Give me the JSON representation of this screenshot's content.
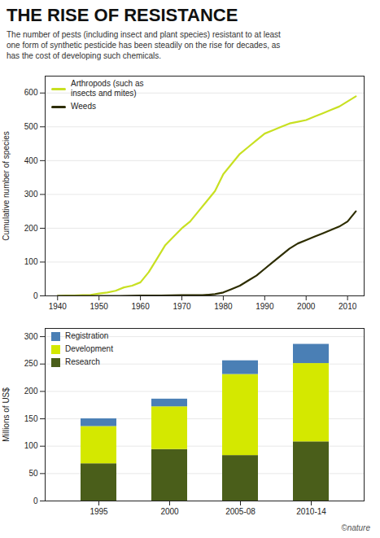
{
  "chart_data": [
    {
      "type": "line",
      "title": "THE RISE OF RESISTANCE",
      "subtitle": "The number of pests (including insect and plant species) resistant to at least\none form of synthetic pesticide has been steadily on the rise for decades, as\nhas the cost of developing such chemicals.",
      "ylabel": "Cumulative number of species",
      "xlim": [
        1937,
        2014
      ],
      "xticks": [
        1940,
        1950,
        1960,
        1970,
        1980,
        1990,
        2000,
        2010
      ],
      "ylim": [
        0,
        650
      ],
      "yticks": [
        0,
        100,
        200,
        300,
        400,
        500,
        600
      ],
      "grid": true,
      "legend": "upper left",
      "series": [
        {
          "name": "Arthropods (such as\ninsects and mites)",
          "color": "#c8e022",
          "x": [
            1940,
            1942,
            1944,
            1946,
            1948,
            1950,
            1952,
            1954,
            1956,
            1958,
            1960,
            1962,
            1964,
            1966,
            1968,
            1970,
            1972,
            1974,
            1976,
            1978,
            1980,
            1982,
            1984,
            1986,
            1988,
            1990,
            1992,
            1994,
            1996,
            1998,
            2000,
            2002,
            2004,
            2006,
            2008,
            2010,
            2012
          ],
          "values": [
            0,
            1,
            1,
            2,
            3,
            7,
            10,
            15,
            25,
            30,
            40,
            70,
            110,
            150,
            175,
            200,
            220,
            250,
            280,
            310,
            360,
            390,
            420,
            440,
            460,
            480,
            490,
            500,
            510,
            515,
            520,
            530,
            540,
            550,
            560,
            575,
            590
          ]
        },
        {
          "name": "Weeds",
          "color": "#2d2d00",
          "x": [
            1940,
            1945,
            1950,
            1955,
            1960,
            1965,
            1970,
            1975,
            1978,
            1980,
            1982,
            1984,
            1986,
            1988,
            1990,
            1992,
            1994,
            1996,
            1998,
            2000,
            2002,
            2004,
            2006,
            2008,
            2010,
            2012
          ],
          "values": [
            0,
            0,
            0,
            0,
            1,
            1,
            2,
            2,
            5,
            10,
            20,
            30,
            45,
            60,
            80,
            100,
            120,
            140,
            155,
            165,
            175,
            185,
            195,
            205,
            220,
            250
          ]
        }
      ]
    },
    {
      "type": "bar",
      "stacked": true,
      "ylabel": "Millions of US$",
      "categories": [
        "1995",
        "2000",
        "2005-08",
        "2010-14"
      ],
      "ylim": [
        0,
        315
      ],
      "yticks": [
        0,
        50,
        100,
        150,
        200,
        250,
        300
      ],
      "grid": true,
      "legend": "upper left",
      "series": [
        {
          "name": "Research",
          "color": "#4a5e1a",
          "values": [
            68,
            94,
            83,
            108
          ]
        },
        {
          "name": "Development",
          "color": "#d4e800",
          "values": [
            68,
            78,
            148,
            143
          ]
        },
        {
          "name": "Registration",
          "color": "#4a7fb5",
          "values": [
            14,
            14,
            25,
            35
          ]
        }
      ],
      "annotations": [
        "©nature"
      ]
    }
  ]
}
